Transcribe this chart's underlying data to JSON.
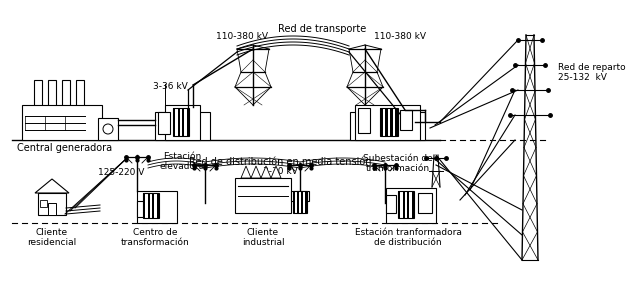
{
  "bg_color": "#ffffff",
  "labels": {
    "red_transporte": "Red de transporte",
    "kv_110_380_left": "110-380 kV",
    "kv_110_380_right": "110-380 kV",
    "kv_3_36": "3-36 kV",
    "central_generadora": "Central generadora",
    "estacion_elevadora": "Estación\nelevadora",
    "subestacion": "Subestación de\ntranformación",
    "red_reparto": "Red de reparto",
    "kv_25_132": "25-132  kV",
    "red_distribucion": "Red de distribución en media tensión",
    "kv_3_30": "3-30 kV",
    "v_125_220": "125-220 V",
    "cliente_residencial": "Cliente\nresidencial",
    "centro_transformacion": "Centro de\ntransformación",
    "cliente_industrial": "Cliente\nindustrial",
    "estacion_tranformadora": "Estación tranformadora\nde distribución"
  }
}
